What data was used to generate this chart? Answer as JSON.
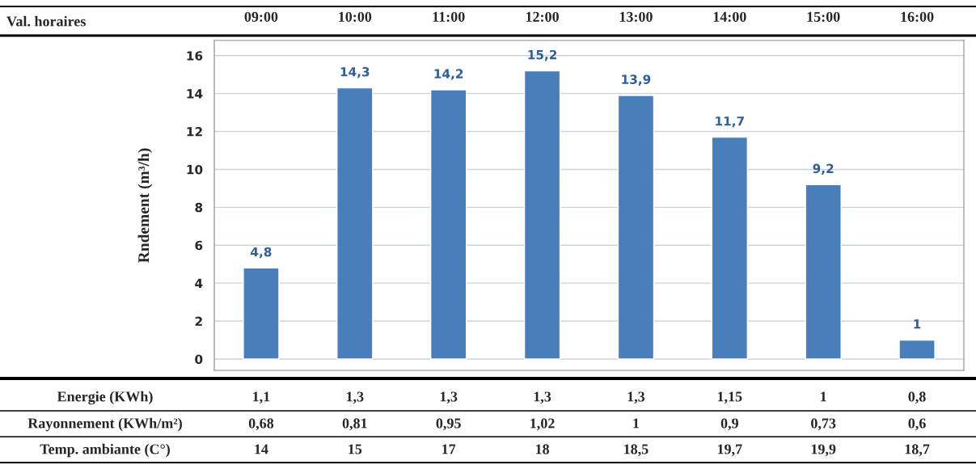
{
  "chart_data": {
    "type": "bar",
    "ylabel": "Rndement (m³/h)",
    "categories": [
      "09:00",
      "10:00",
      "11:00",
      "12:00",
      "13:00",
      "14:00",
      "15:00",
      "16:00"
    ],
    "series": [
      {
        "color": "#4a7ebb",
        "values": [
          4.8,
          14.3,
          14.2,
          15.2,
          13.9,
          11.7,
          9.2,
          1
        ],
        "value_labels": [
          "4,8",
          "14,3",
          "14,2",
          "15,2",
          "13,9",
          "11,7",
          "9,2",
          "1"
        ]
      }
    ],
    "ylim": [
      -0.6,
      16.8
    ],
    "yticks": [
      0,
      2,
      4,
      6,
      8,
      10,
      12,
      14,
      16
    ],
    "grid": "y",
    "annotations": [
      "Val. horaires",
      "Energie (KWh)",
      "1,1",
      "1,3",
      "1,3",
      "1,3",
      "1,3",
      "1,15",
      "1",
      "0,8",
      "Rayonnement (KWh/m²)",
      "0,68",
      "0,81",
      "0,95",
      "1,02",
      "1",
      "0,9",
      "0,73",
      "0,6",
      "Temp. ambiante (C°)",
      "14",
      "15",
      "17",
      "18",
      "18,5",
      "19,7",
      "19,9",
      "18,7"
    ]
  }
}
